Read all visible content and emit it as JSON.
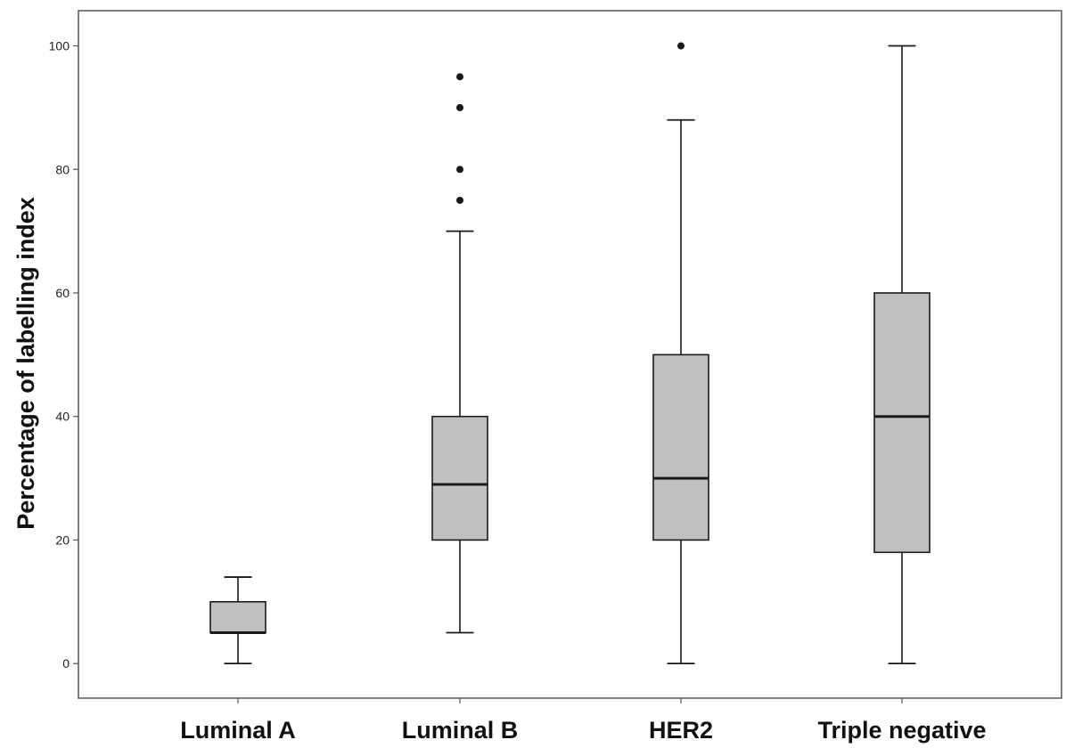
{
  "chart_data": {
    "type": "boxplot",
    "title": "",
    "xlabel": "",
    "ylabel": "Percentage of labelling index",
    "ylim": [
      -5.6,
      105.7
    ],
    "yticks": [
      0,
      20,
      40,
      60,
      80,
      100
    ],
    "grid": false,
    "legend": "none",
    "categories": [
      "Luminal A",
      "Luminal B",
      "HER2",
      "Triple negative"
    ],
    "box_fill": "#c0c0c0",
    "stroke": "#1a1a1a",
    "boxes": [
      {
        "category": "Luminal A",
        "whisker_low": 0,
        "q1": 5,
        "median": 5,
        "q3": 10,
        "whisker_high": 14,
        "outliers": []
      },
      {
        "category": "Luminal B",
        "whisker_low": 5,
        "q1": 20,
        "median": 29,
        "q3": 40,
        "whisker_high": 70,
        "outliers": [
          75,
          80,
          90,
          95
        ]
      },
      {
        "category": "HER2",
        "whisker_low": 0,
        "q1": 20,
        "median": 30,
        "q3": 50,
        "whisker_high": 88,
        "outliers": [
          100
        ]
      },
      {
        "category": "Triple negative",
        "whisker_low": 0,
        "q1": 18,
        "median": 40,
        "q3": 60,
        "whisker_high": 100,
        "outliers": []
      }
    ]
  }
}
